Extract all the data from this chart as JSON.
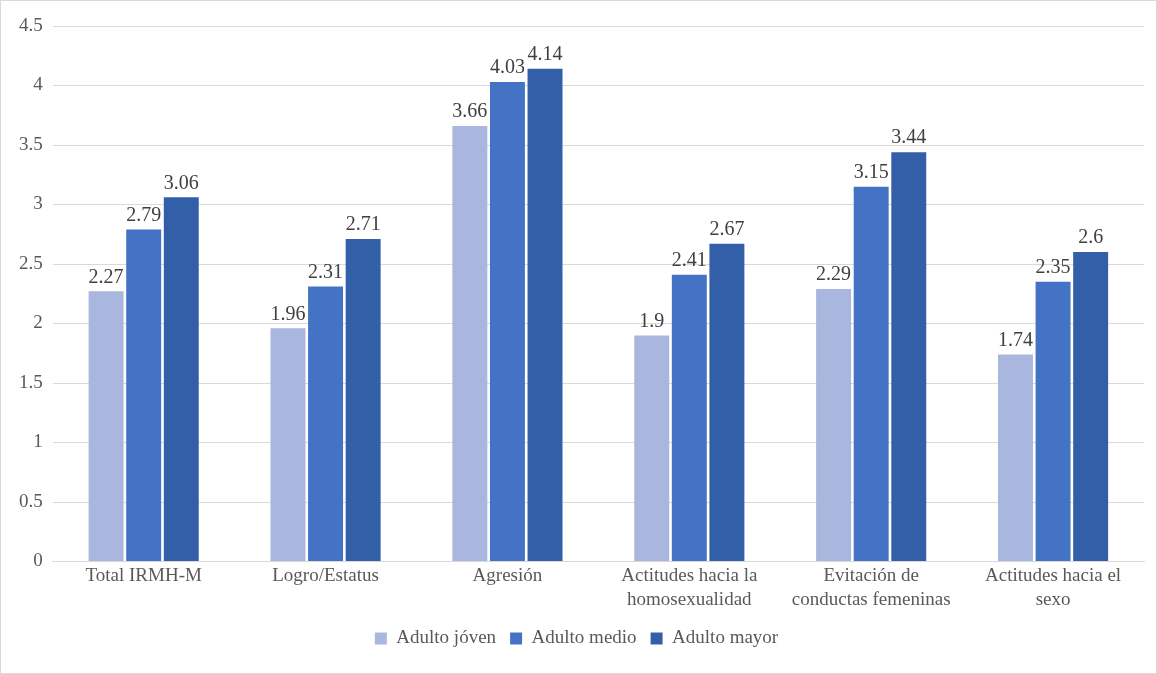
{
  "chart_data": {
    "type": "bar",
    "categories": [
      "Total IRMH-M",
      "Logro/Estatus",
      "Agresión",
      "Actitudes hacia la homosexualidad",
      "Evitación de conductas femeninas",
      "Actitudes hacia el sexo"
    ],
    "series": [
      {
        "name": "Adulto jóven",
        "color": "#a9b6dd",
        "values": [
          2.27,
          1.96,
          3.66,
          1.9,
          2.29,
          1.74
        ]
      },
      {
        "name": "Adulto medio",
        "color": "#4472c4",
        "values": [
          2.79,
          2.31,
          4.03,
          2.41,
          3.15,
          2.35
        ]
      },
      {
        "name": "Adulto mayor",
        "color": "#335ea8",
        "values": [
          3.06,
          2.71,
          4.14,
          2.67,
          3.44,
          2.6
        ]
      }
    ],
    "ylim": [
      0,
      4.5
    ],
    "yticks": [
      0,
      0.5,
      1,
      1.5,
      2,
      2.5,
      3,
      3.5,
      4,
      4.5
    ],
    "grid": "y",
    "legend": "bottom",
    "data_labels": true
  }
}
